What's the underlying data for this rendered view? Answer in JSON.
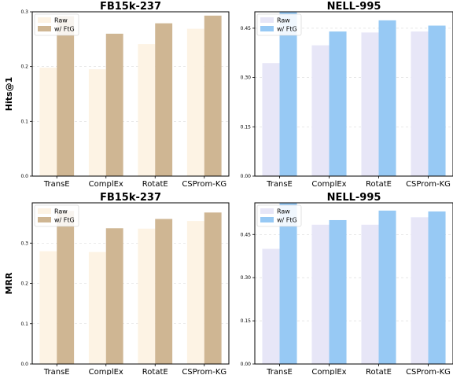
{
  "colors": {
    "fb_raw": "#fdf3e4",
    "fb_ftg": "#cfb693",
    "nell_raw": "#e7e6f7",
    "nell_ftg": "#97c9f4"
  },
  "chart_data": [
    {
      "type": "bar",
      "title": "FB15k-237",
      "ylabel": "Hits@1",
      "categories": [
        "TransE",
        "ComplEx",
        "RotatE",
        "CSProm-KG"
      ],
      "ylim": [
        0,
        0.3
      ],
      "yticks": [
        0.0,
        0.1,
        0.2,
        0.3
      ],
      "ytick_labels": [
        "0.0",
        "0.1",
        "0.2",
        "0.3"
      ],
      "grid": true,
      "legend": "top-left",
      "series": [
        {
          "name": "Raw",
          "values": [
            0.198,
            0.195,
            0.241,
            0.269
          ]
        },
        {
          "name": "w/ FtG",
          "values": [
            0.292,
            0.26,
            0.279,
            0.293
          ]
        }
      ]
    },
    {
      "type": "bar",
      "title": "NELL-995",
      "ylabel": "",
      "categories": [
        "TransE",
        "ComplEx",
        "RotatE",
        "CSProm-KG"
      ],
      "ylim": [
        0,
        0.5
      ],
      "yticks": [
        0.0,
        0.15,
        0.3,
        0.45
      ],
      "ytick_labels": [
        "0.00",
        "0.15",
        "0.30",
        "0.45"
      ],
      "grid": true,
      "legend": "top-left",
      "series": [
        {
          "name": "Raw",
          "values": [
            0.344,
            0.398,
            0.437,
            0.44
          ]
        },
        {
          "name": "w/ FtG",
          "values": [
            0.5,
            0.44,
            0.474,
            0.458
          ]
        }
      ]
    },
    {
      "type": "bar",
      "title": "FB15k-237",
      "ylabel": "MRR",
      "categories": [
        "TransE",
        "ComplEx",
        "RotatE",
        "CSProm-KG"
      ],
      "ylim": [
        0,
        0.4
      ],
      "yticks": [
        0.0,
        0.1,
        0.2,
        0.3
      ],
      "ytick_labels": [
        "0.0",
        "0.1",
        "0.2",
        "0.3"
      ],
      "grid": true,
      "legend": "top-left",
      "series": [
        {
          "name": "Raw",
          "values": [
            0.28,
            0.278,
            0.336,
            0.355
          ]
        },
        {
          "name": "w/ FtG",
          "values": [
            0.38,
            0.337,
            0.36,
            0.376
          ]
        }
      ]
    },
    {
      "type": "bar",
      "title": "NELL-995",
      "ylabel": "",
      "categories": [
        "TransE",
        "ComplEx",
        "RotatE",
        "CSProm-KG"
      ],
      "ylim": [
        0,
        0.56
      ],
      "yticks": [
        0.0,
        0.15,
        0.3,
        0.45
      ],
      "ytick_labels": [
        "0.00",
        "0.15",
        "0.30",
        "0.45"
      ],
      "grid": true,
      "legend": "top-left",
      "series": [
        {
          "name": "Raw",
          "values": [
            0.4,
            0.484,
            0.484,
            0.51
          ]
        },
        {
          "name": "w/ FtG",
          "values": [
            0.56,
            0.5,
            0.533,
            0.53
          ]
        }
      ]
    }
  ]
}
